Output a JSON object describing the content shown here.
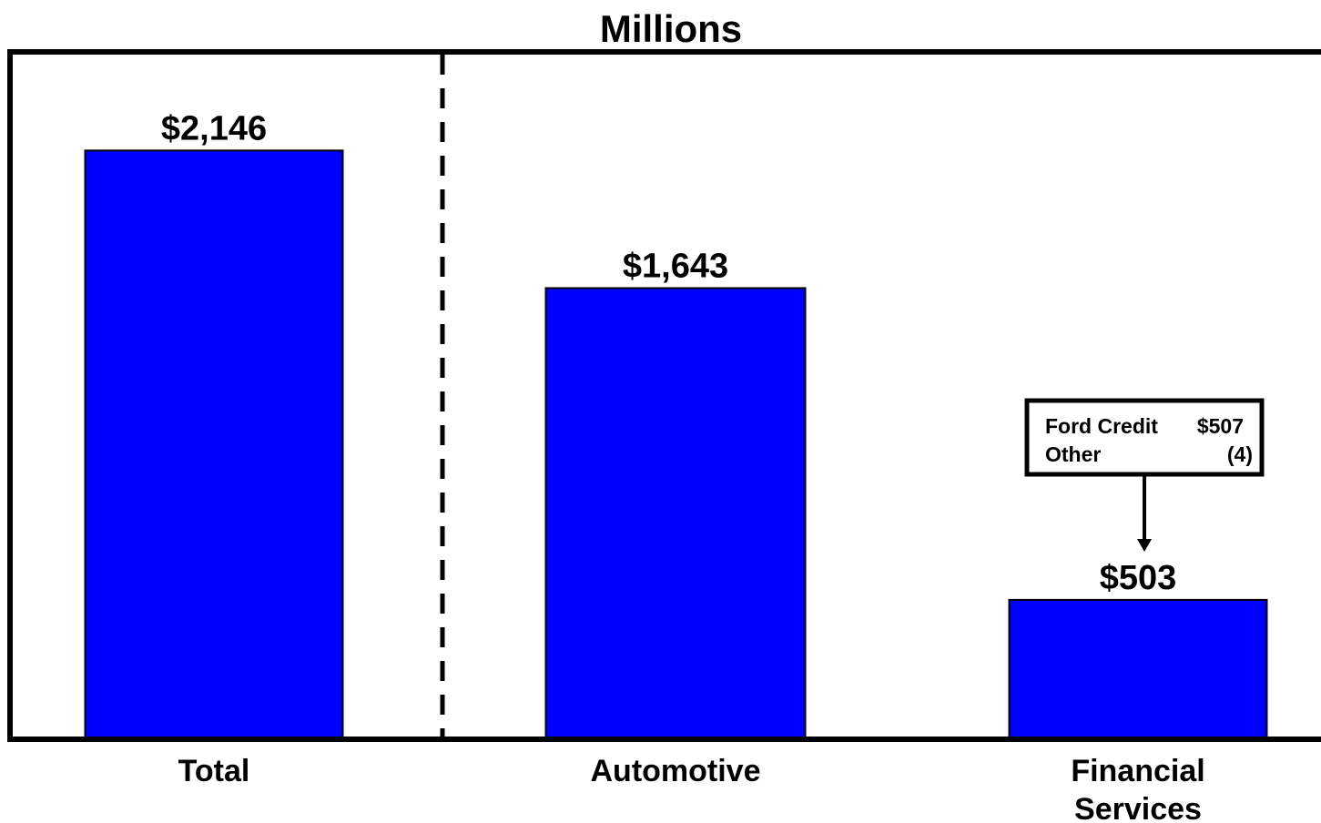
{
  "chart_data": {
    "type": "bar",
    "title": "Millions",
    "categories": [
      "Total",
      "Automotive",
      "Financial Services"
    ],
    "values": [
      2146,
      1643,
      503
    ],
    "value_labels": [
      "$2,146",
      "$1,643",
      "$503"
    ],
    "ylim": [
      0,
      2500
    ],
    "grid": false,
    "bar_color": "#0000FF",
    "callout": {
      "target_category": "Financial Services",
      "rows": [
        {
          "label": "Ford Credit",
          "value": "$507"
        },
        {
          "label": "Other",
          "value": "(4)"
        }
      ]
    }
  }
}
